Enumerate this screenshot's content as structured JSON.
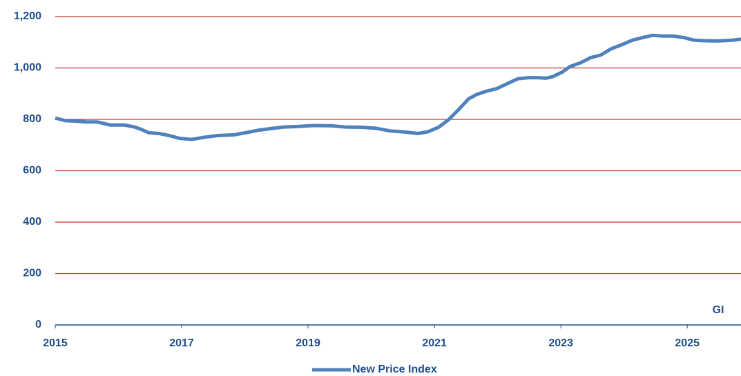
{
  "chart_data": {
    "type": "line",
    "annotation": "GI",
    "x": [
      2015.0,
      2015.16,
      2015.33,
      2015.49,
      2015.66,
      2015.87,
      2016.09,
      2016.26,
      2016.37,
      2016.48,
      2016.64,
      2016.8,
      2016.97,
      2017.16,
      2017.35,
      2017.57,
      2017.84,
      2018.01,
      2018.22,
      2018.44,
      2018.61,
      2018.83,
      2019.1,
      2019.37,
      2019.59,
      2019.86,
      2020.08,
      2020.3,
      2020.52,
      2020.74,
      2020.9,
      2021.07,
      2021.23,
      2021.39,
      2021.54,
      2021.67,
      2021.83,
      2021.99,
      2022.16,
      2022.32,
      2022.49,
      2022.65,
      2022.76,
      2022.87,
      2023.03,
      2023.14,
      2023.31,
      2023.47,
      2023.63,
      2023.8,
      2023.96,
      2024.13,
      2024.29,
      2024.45,
      2024.62,
      2024.78,
      2024.95,
      2025.11,
      2025.27,
      2025.49,
      2025.71,
      2025.85
    ],
    "series": [
      {
        "name": "New Price Index",
        "color": "#4f81bd",
        "values": [
          805,
          795,
          793,
          790,
          790,
          778,
          778,
          770,
          760,
          748,
          745,
          737,
          726,
          722,
          730,
          737,
          740,
          748,
          758,
          765,
          770,
          772,
          776,
          775,
          770,
          769,
          765,
          755,
          751,
          745,
          752,
          770,
          800,
          840,
          880,
          897,
          910,
          920,
          940,
          958,
          962,
          962,
          960,
          966,
          985,
          1005,
          1020,
          1040,
          1050,
          1075,
          1090,
          1108,
          1118,
          1127,
          1124,
          1124,
          1118,
          1108,
          1106,
          1105,
          1108,
          1112
        ]
      }
    ],
    "xlim": [
      2015,
      2025.85
    ],
    "xticks": [
      2015,
      2017,
      2019,
      2021,
      2023,
      2025
    ],
    "ylim": [
      0,
      1200
    ],
    "yticks": [
      0,
      200,
      400,
      600,
      800,
      {
        "value": 1000,
        "label": "1,000"
      },
      {
        "value": 1200,
        "label": "1,200"
      }
    ],
    "grid": true,
    "grid_color": "#c0392b",
    "legend": "bottom"
  }
}
